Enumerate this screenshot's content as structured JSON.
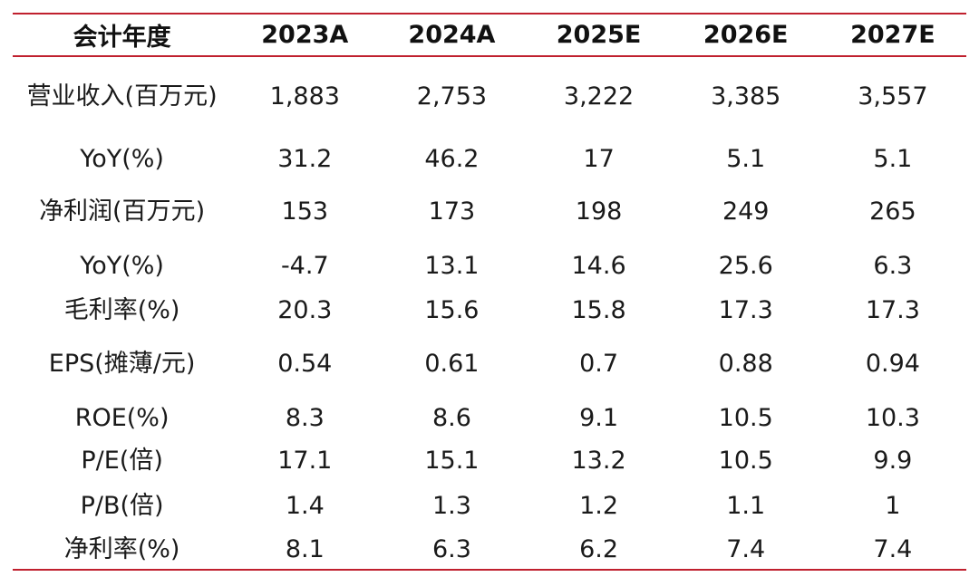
{
  "header": [
    "会计年度",
    "2023A",
    "2024A",
    "2025E",
    "2026E",
    "2027E"
  ],
  "rows": [
    {
      "label": "营业收入(百万元)",
      "values": [
        "1,883",
        "2,753",
        "3,222",
        "3,385",
        "3,557"
      ]
    },
    {
      "label": "YoY(%)",
      "values": [
        "31.2",
        "46.2",
        "17",
        "5.1",
        "5.1"
      ]
    },
    {
      "label": "净利润(百万元)",
      "values": [
        "153",
        "173",
        "198",
        "249",
        "265"
      ]
    },
    {
      "label": "YoY(%)",
      "values": [
        "-4.7",
        "13.1",
        "14.6",
        "25.6",
        "6.3"
      ]
    },
    {
      "label": "毛利率(%)",
      "values": [
        "20.3",
        "15.6",
        "15.8",
        "17.3",
        "17.3"
      ]
    },
    {
      "label": "EPS(摊薄/元)",
      "values": [
        "0.54",
        "0.61",
        "0.7",
        "0.88",
        "0.94"
      ]
    },
    {
      "label": "ROE(%)",
      "values": [
        "8.3",
        "8.6",
        "9.1",
        "10.5",
        "10.3"
      ]
    },
    {
      "label": "P/E(倍)",
      "values": [
        "17.1",
        "15.1",
        "13.2",
        "10.5",
        "9.9"
      ]
    },
    {
      "label": "P/B(倍)",
      "values": [
        "1.4",
        "1.3",
        "1.2",
        "1.1",
        "1"
      ]
    },
    {
      "label": "净利率(%)",
      "values": [
        "8.1",
        "6.3",
        "6.2",
        "7.4",
        "7.4"
      ]
    }
  ],
  "colors": {
    "rule": "#c0202e",
    "text": "#1a1a1a"
  }
}
